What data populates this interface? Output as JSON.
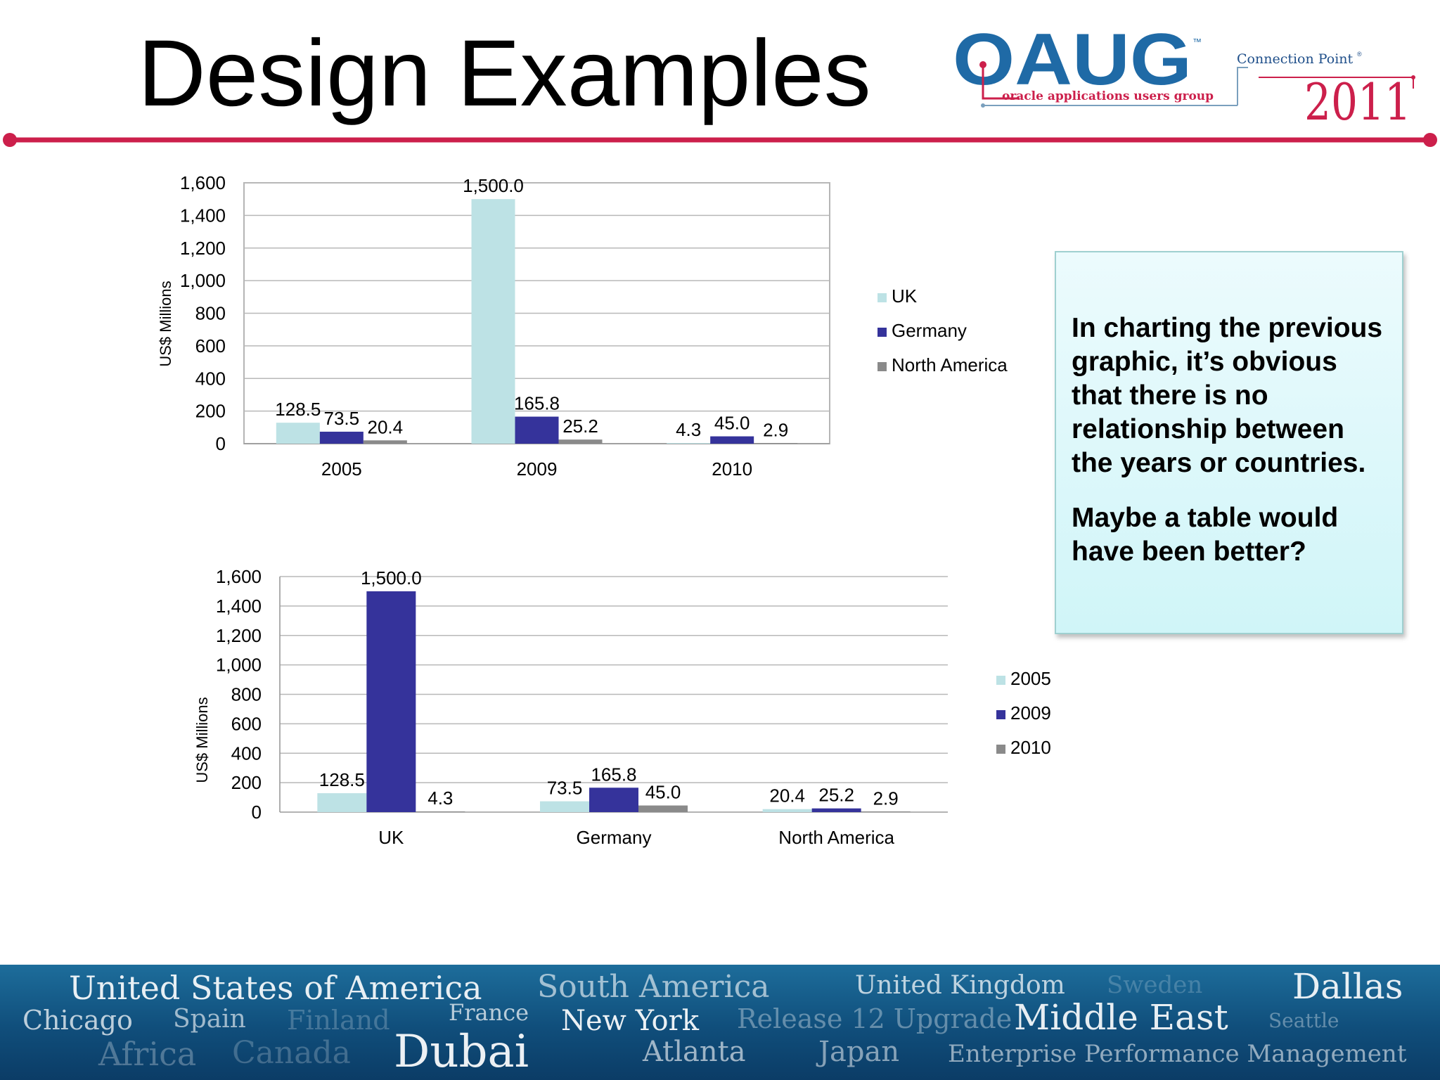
{
  "slide": {
    "title": "Design Examples",
    "callout": {
      "paragraph1": "In charting the previous graphic, it’s obvious that there is no relationship between the years or countries.",
      "paragraph2": "Maybe a table would have been better?"
    }
  },
  "logo": {
    "name": "OAUG",
    "tm": "™",
    "tagline": "oracle applications users group",
    "event": "Connection Point",
    "event_mark": "®",
    "year": "2011"
  },
  "banner": {
    "words": [
      "United States of America",
      "Chicago",
      "Spain",
      "Finland",
      "Africa",
      "Canada",
      "France",
      "Dubai",
      "South America",
      "New York",
      "Atlanta",
      "Release 12 Upgrade",
      "United Kingdom",
      "Japan",
      "Sweden",
      "Middle East",
      "Dallas",
      "Seattle",
      "Enterprise Performance Management"
    ]
  },
  "colors": {
    "accent_rule": "#cc1f4b",
    "uk": "#bde2e5",
    "germany": "#35339b",
    "north_america": "#8a8a8a",
    "banner": "#145a88"
  },
  "chart_data": [
    {
      "type": "bar",
      "categories": [
        "2005",
        "2009",
        "2010"
      ],
      "series": [
        {
          "name": "UK",
          "values": [
            128.5,
            1500.0,
            4.3
          ]
        },
        {
          "name": "Germany",
          "values": [
            73.5,
            165.8,
            45.0
          ]
        },
        {
          "name": "North America",
          "values": [
            20.4,
            25.2,
            2.9
          ]
        }
      ],
      "data_labels": [
        [
          "128.5",
          "1,500.0",
          "4.3"
        ],
        [
          "73.5",
          "165.8",
          "45.0"
        ],
        [
          "20.4",
          "25.2",
          "2.9"
        ]
      ],
      "title": "",
      "xlabel": "",
      "ylabel": "US$ Millions",
      "ylim": [
        0,
        1600
      ],
      "yticks": [
        "0",
        "200",
        "400",
        "600",
        "800",
        "1,000",
        "1,200",
        "1,400",
        "1,600"
      ],
      "grid": true,
      "legend": "right"
    },
    {
      "type": "bar",
      "categories": [
        "UK",
        "Germany",
        "North America"
      ],
      "series": [
        {
          "name": "2005",
          "values": [
            128.5,
            73.5,
            20.4
          ]
        },
        {
          "name": "2009",
          "values": [
            1500.0,
            165.8,
            25.2
          ]
        },
        {
          "name": "2010",
          "values": [
            4.3,
            45.0,
            2.9
          ]
        }
      ],
      "data_labels": [
        [
          "128.5",
          "73.5",
          "20.4"
        ],
        [
          "1,500.0",
          "165.8",
          "25.2"
        ],
        [
          "4.3",
          "45.0",
          "2.9"
        ]
      ],
      "title": "",
      "xlabel": "",
      "ylabel": "US$ Millions",
      "ylim": [
        0,
        1600
      ],
      "yticks": [
        "0",
        "200",
        "400",
        "600",
        "800",
        "1,000",
        "1,200",
        "1,400",
        "1,600"
      ],
      "grid": true,
      "legend": "right"
    }
  ]
}
